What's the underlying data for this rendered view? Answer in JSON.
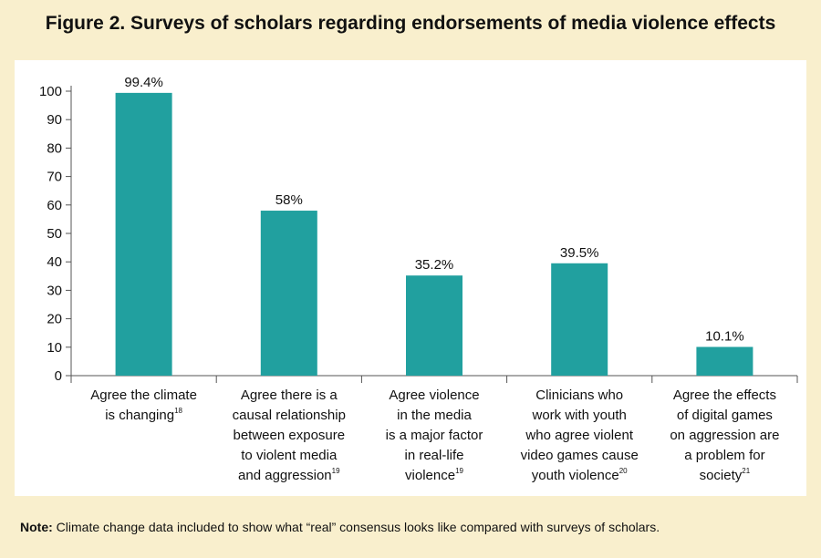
{
  "page": {
    "title": "Figure 2. Surveys of scholars regarding endorsements of media violence effects",
    "note_label": "Note:",
    "note_text": " Climate change data included to show what “real” consensus looks like compared with surveys of scholars."
  },
  "colors": {
    "bar": "#21a09f",
    "page_bg": "#f9efcd",
    "plot_bg": "#ffffff",
    "axis": "#555555"
  },
  "chart_data": {
    "type": "bar",
    "title": "Figure 2. Surveys of scholars regarding endorsements of media violence effects",
    "xlabel": "",
    "ylabel": "",
    "ylim": [
      0,
      100
    ],
    "yticks": [
      0,
      10,
      20,
      30,
      40,
      50,
      60,
      70,
      80,
      90,
      100
    ],
    "grid": false,
    "categories": [
      {
        "lines": [
          "Agree the climate",
          "is changing"
        ],
        "superscript": "18"
      },
      {
        "lines": [
          "Agree there is a",
          "causal relationship",
          "between exposure",
          "to violent media",
          "and aggression"
        ],
        "superscript": "19"
      },
      {
        "lines": [
          "Agree violence",
          "in the media",
          "is a major factor",
          "in real-life",
          "violence"
        ],
        "superscript": "19"
      },
      {
        "lines": [
          "Clinicians who",
          "work with youth",
          "who agree violent",
          "video games cause",
          "youth violence"
        ],
        "superscript": "20"
      },
      {
        "lines": [
          "Agree the effects",
          "of digital games",
          "on aggression are",
          "a problem for",
          "society"
        ],
        "superscript": "21"
      }
    ],
    "values": [
      99.4,
      58,
      35.2,
      39.5,
      10.1
    ],
    "data_labels": [
      "99.4%",
      "58%",
      "35.2%",
      "39.5%",
      "10.1%"
    ]
  }
}
